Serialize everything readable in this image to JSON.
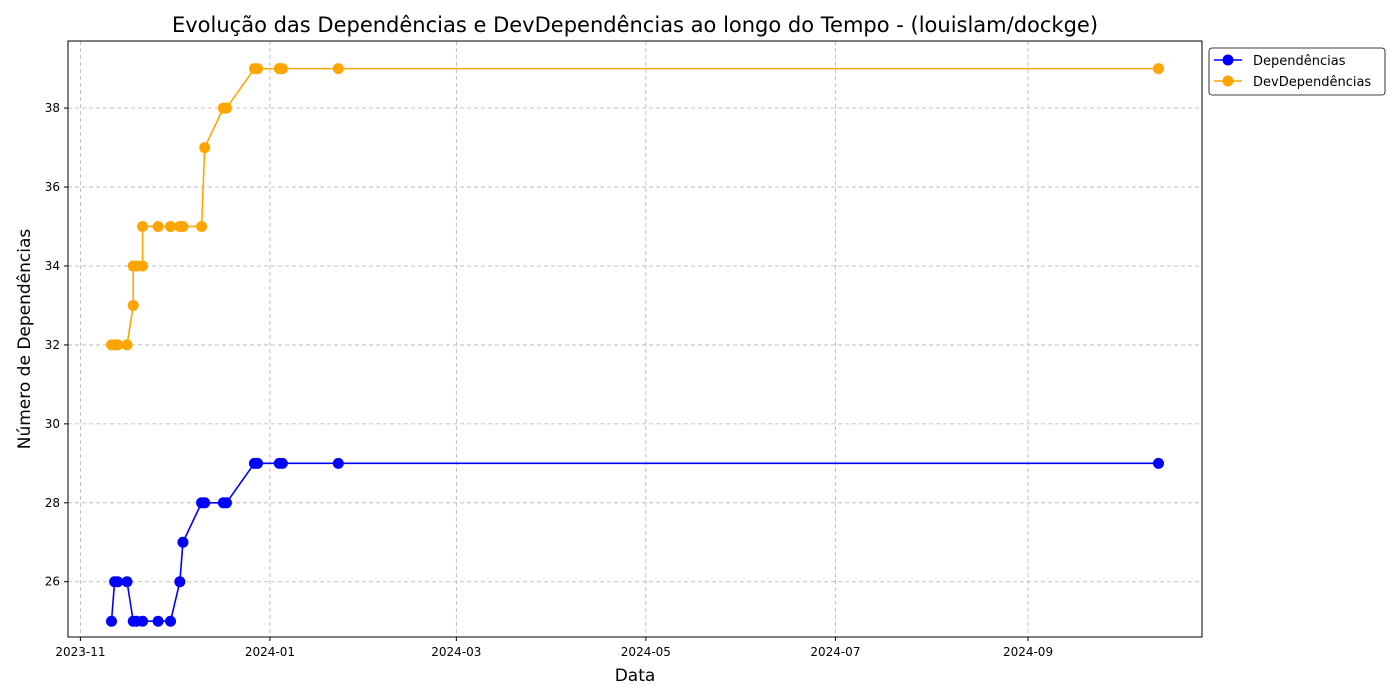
{
  "chart_data": {
    "type": "line",
    "title": "Evolução das Dependências e DevDependências ao longo do Tempo - (louislam/dockge)",
    "xlabel": "Data",
    "ylabel": "Número de Dependências",
    "xlim": [
      "2023-10-28",
      "2024-10-27"
    ],
    "ylim": [
      24.6,
      39.7
    ],
    "x_ticks": [
      "2023-11-01",
      "2024-01-01",
      "2024-03-01",
      "2024-05-01",
      "2024-07-01",
      "2024-09-01"
    ],
    "x_tick_labels": [
      "2023-11",
      "2024-01",
      "2024-03",
      "2024-05",
      "2024-07",
      "2024-09"
    ],
    "y_ticks": [
      26,
      28,
      30,
      32,
      34,
      36,
      38
    ],
    "y_tick_labels": [
      "26",
      "28",
      "30",
      "32",
      "34",
      "36",
      "38"
    ],
    "grid": true,
    "legend_position": "outside top-right",
    "series": [
      {
        "name": "Dependências",
        "color": "#0000ff",
        "marker": "circle",
        "points": [
          [
            "2023-11-11",
            25
          ],
          [
            "2023-11-12",
            26
          ],
          [
            "2023-11-13",
            26
          ],
          [
            "2023-11-16",
            26
          ],
          [
            "2023-11-18",
            25
          ],
          [
            "2023-11-19",
            25
          ],
          [
            "2023-11-21",
            25
          ],
          [
            "2023-11-26",
            25
          ],
          [
            "2023-11-30",
            25
          ],
          [
            "2023-12-03",
            26
          ],
          [
            "2023-12-04",
            27
          ],
          [
            "2023-12-10",
            28
          ],
          [
            "2023-12-11",
            28
          ],
          [
            "2023-12-17",
            28
          ],
          [
            "2023-12-18",
            28
          ],
          [
            "2023-12-27",
            29
          ],
          [
            "2023-12-28",
            29
          ],
          [
            "2024-01-04",
            29
          ],
          [
            "2024-01-05",
            29
          ],
          [
            "2024-01-23",
            29
          ],
          [
            "2024-10-13",
            29
          ]
        ]
      },
      {
        "name": "DevDependências",
        "color": "#ffa500",
        "marker": "circle",
        "points": [
          [
            "2023-11-11",
            32
          ],
          [
            "2023-11-12",
            32
          ],
          [
            "2023-11-13",
            32
          ],
          [
            "2023-11-16",
            32
          ],
          [
            "2023-11-18",
            33
          ],
          [
            "2023-11-18",
            34
          ],
          [
            "2023-11-19",
            34
          ],
          [
            "2023-11-21",
            34
          ],
          [
            "2023-11-21",
            35
          ],
          [
            "2023-11-26",
            35
          ],
          [
            "2023-11-30",
            35
          ],
          [
            "2023-12-03",
            35
          ],
          [
            "2023-12-04",
            35
          ],
          [
            "2023-12-10",
            35
          ],
          [
            "2023-12-11",
            37
          ],
          [
            "2023-12-17",
            38
          ],
          [
            "2023-12-18",
            38
          ],
          [
            "2023-12-27",
            39
          ],
          [
            "2023-12-28",
            39
          ],
          [
            "2024-01-04",
            39
          ],
          [
            "2024-01-05",
            39
          ],
          [
            "2024-01-23",
            39
          ],
          [
            "2024-10-13",
            39
          ]
        ]
      }
    ]
  }
}
